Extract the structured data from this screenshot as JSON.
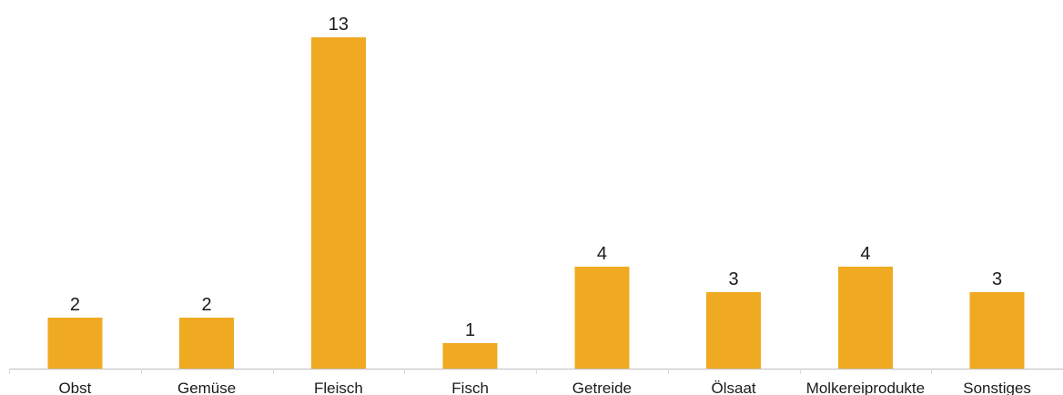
{
  "chart_data": {
    "type": "bar",
    "categories": [
      "Obst",
      "Gemüse",
      "Fleisch",
      "Fisch",
      "Getreide",
      "Ölsaat",
      "Molkereiprodukte",
      "Sonstiges"
    ],
    "values": [
      2,
      2,
      13,
      1,
      4,
      3,
      4,
      3
    ],
    "title": "",
    "xlabel": "",
    "ylabel": "",
    "ylim": [
      0,
      13
    ],
    "grid": false,
    "legend": "none",
    "bar_color": "#F0AA22",
    "data_labels": true
  }
}
